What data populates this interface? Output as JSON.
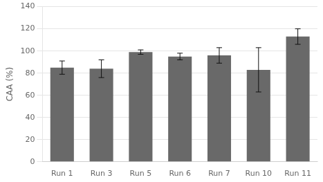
{
  "chart_data": {
    "type": "bar",
    "categories": [
      "Run 1",
      "Run 3",
      "Run 5",
      "Run 6",
      "Run 7",
      "Run 10",
      "Run 11"
    ],
    "values": [
      85,
      84,
      99,
      95,
      96,
      83,
      113
    ],
    "errors": [
      6,
      8,
      2,
      3,
      7,
      20,
      7
    ],
    "color": "#696969",
    "ylabel": "CAA (%)",
    "ylim": [
      0,
      140
    ],
    "yticks": [
      0,
      20,
      40,
      60,
      80,
      100,
      120,
      140
    ],
    "grid": true
  }
}
